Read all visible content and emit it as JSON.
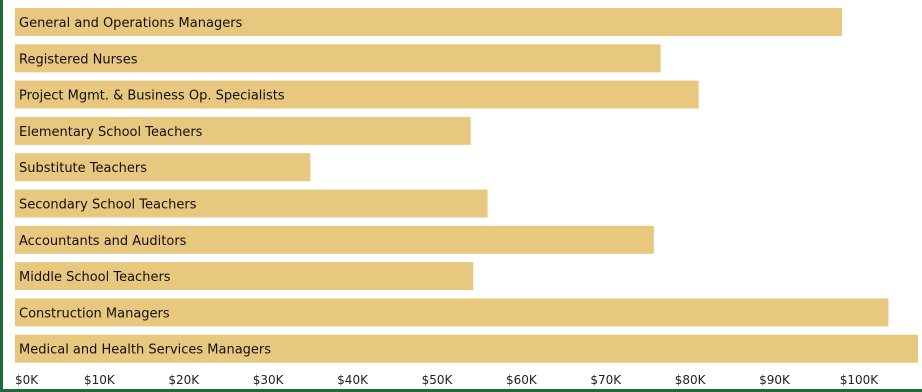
{
  "chart_data": {
    "type": "bar",
    "orientation": "horizontal",
    "categories": [
      "General and Operations Managers",
      "Registered Nurses",
      "Project Mgmt. & Business Op. Specialists",
      "Elementary School Teachers",
      "Substitute Teachers",
      "Secondary School Teachers",
      "Accountants and Auditors",
      "Middle School Teachers",
      "Construction Managers",
      "Medical and Health Services Managers"
    ],
    "values": [
      98000,
      76500,
      81000,
      54000,
      35000,
      56000,
      75700,
      54300,
      103500,
      107000
    ],
    "xlim": [
      0,
      107000
    ],
    "x_ticks": [
      0,
      10000,
      20000,
      30000,
      40000,
      50000,
      60000,
      70000,
      80000,
      90000,
      100000
    ],
    "x_tick_labels": [
      "$0K",
      "$10K",
      "$20K",
      "$30K",
      "$40K",
      "$50K",
      "$60K",
      "$70K",
      "$80K",
      "$90K",
      "$100K"
    ],
    "bar_color": "#e8c77f",
    "frame_color": "#1e6b3a",
    "grid": false,
    "legend": "none"
  }
}
